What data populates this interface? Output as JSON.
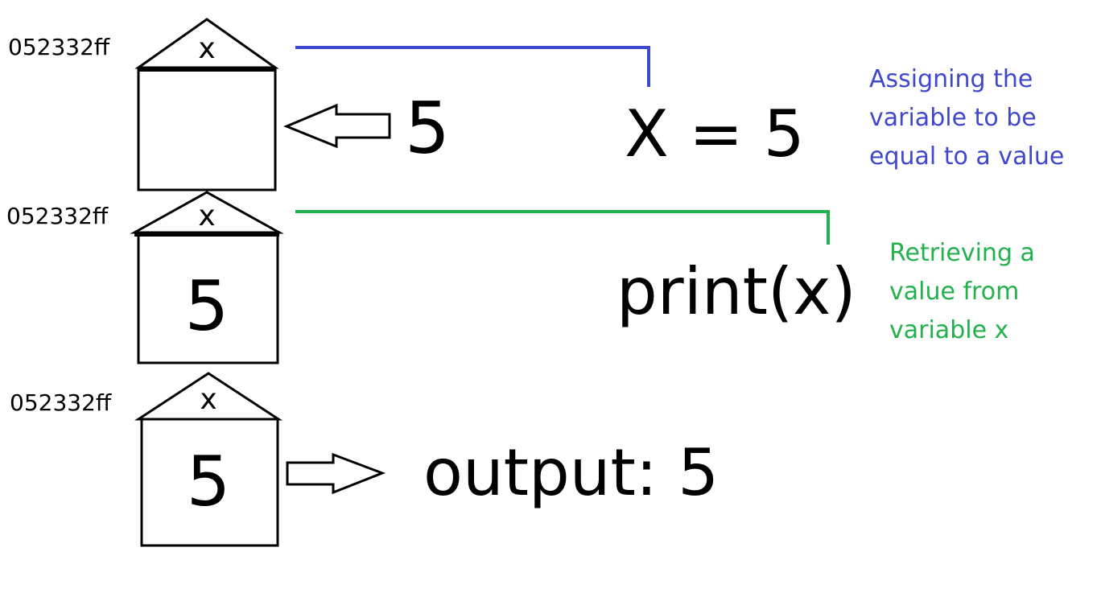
{
  "stages": [
    {
      "address": "052332ff",
      "variable_name": "x",
      "box_value": "",
      "incoming_value": "5",
      "code": "X = 5",
      "note": [
        "Assigning the",
        "variable to be",
        "equal to a value"
      ]
    },
    {
      "address": "052332ff",
      "variable_name": "x",
      "box_value": "5",
      "code": "print(x)",
      "note": [
        "Retrieving a",
        "value from",
        "variable x"
      ]
    },
    {
      "address": "052332ff",
      "variable_name": "x",
      "box_value": "5",
      "output": "output: 5"
    }
  ],
  "colors": {
    "ink": "#000000",
    "assign_note": "#3f48cc",
    "retrieve_note": "#22b14c"
  }
}
